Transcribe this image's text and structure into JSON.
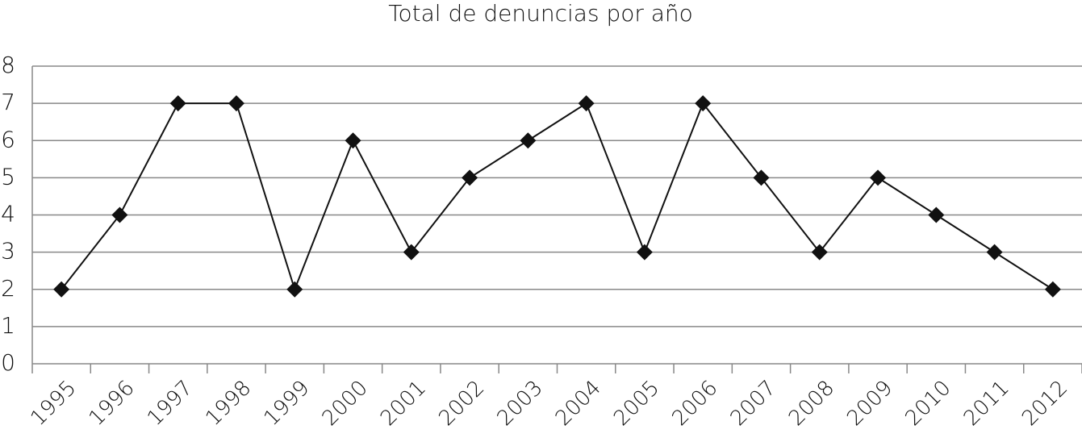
{
  "chart_data": {
    "type": "line",
    "title": "Total de denuncias por año",
    "categories": [
      "1995",
      "1996",
      "1997",
      "1998",
      "1999",
      "2000",
      "2001",
      "2002",
      "2003",
      "2004",
      "2005",
      "2006",
      "2007",
      "2008",
      "2009",
      "2010",
      "2011",
      "2012"
    ],
    "values": [
      2,
      4,
      7,
      7,
      2,
      6,
      3,
      5,
      6,
      7,
      3,
      7,
      5,
      3,
      5,
      4,
      3,
      2
    ],
    "color": "#111111",
    "marker": "diamond",
    "ylim": [
      0,
      8
    ],
    "yticks": [
      0,
      1,
      2,
      3,
      4,
      5,
      6,
      7,
      8
    ],
    "grid": true
  }
}
